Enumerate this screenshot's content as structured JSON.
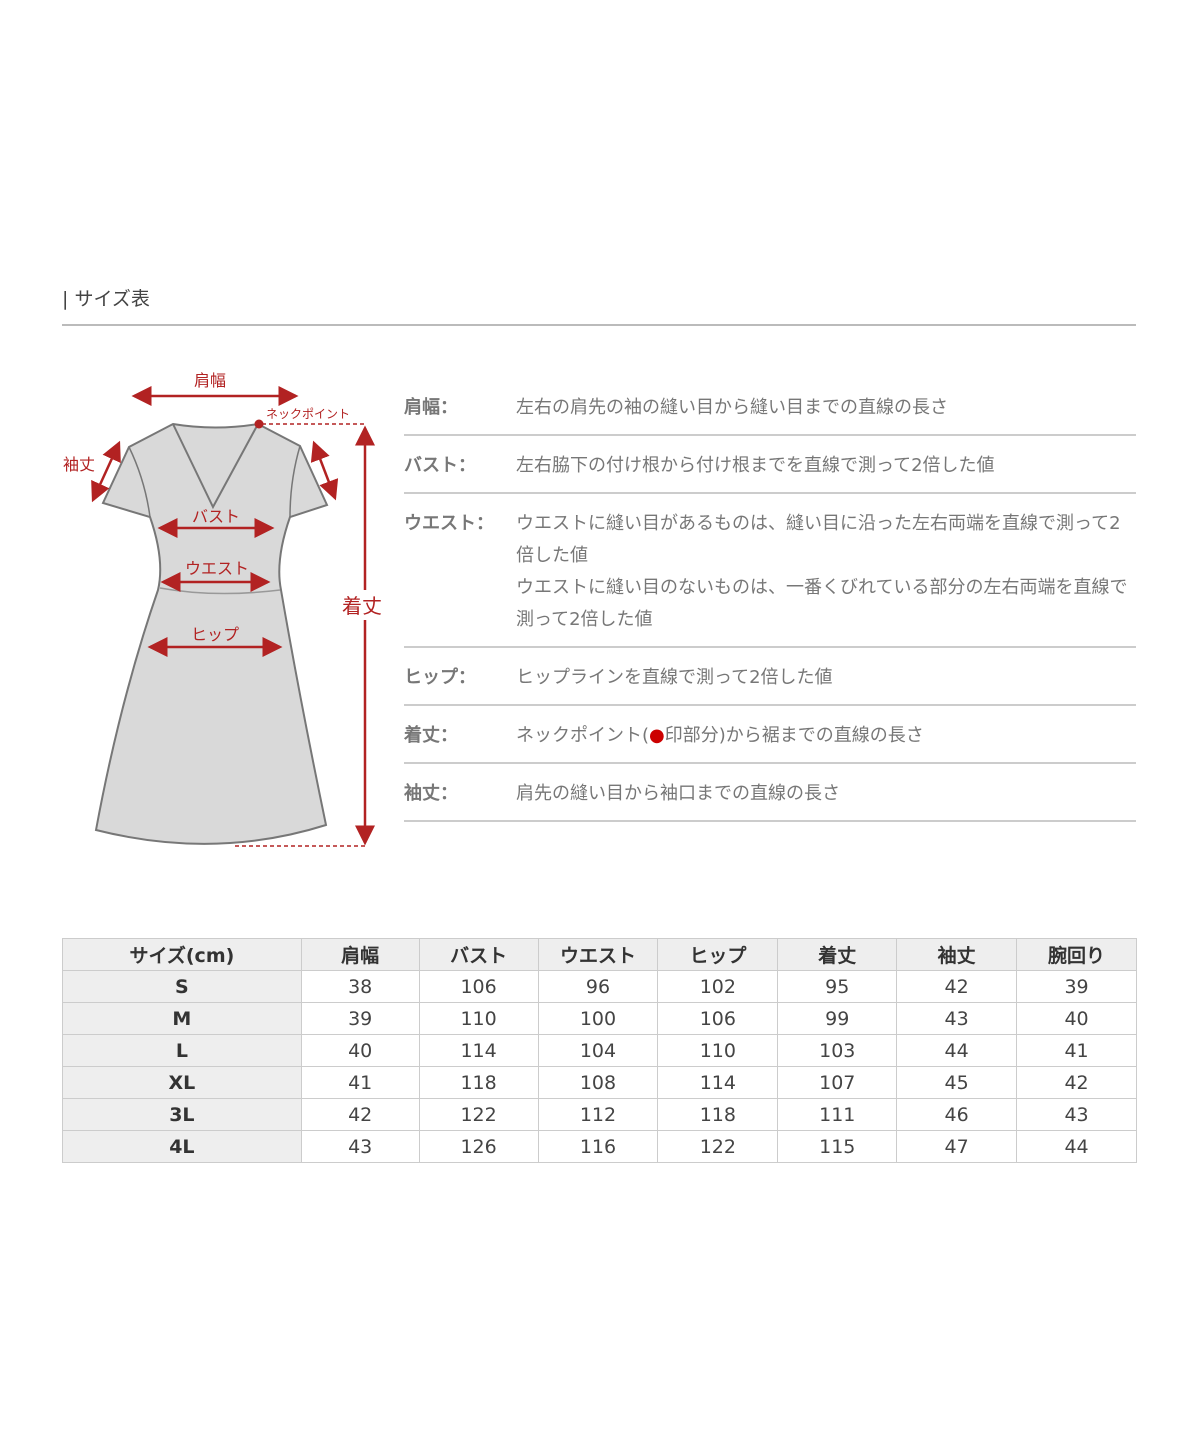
{
  "section_title": "| サイズ表",
  "diagram": {
    "labels": {
      "shoulder": "肩幅",
      "neck_point": "ネックポイント",
      "sleeve": "袖丈",
      "bust": "バスト",
      "waist": "ウエスト",
      "hip": "ヒップ",
      "length": "着丈"
    },
    "colors": {
      "arrow": "#b22222",
      "dress": "#d9d9d9",
      "outline": "#777777"
    }
  },
  "descriptions": [
    {
      "label": "肩幅：",
      "text": "左右の肩先の袖の縫い目から縫い目までの直線の長さ"
    },
    {
      "label": "バスト：",
      "text": "左右脇下の付け根から付け根までを直線で測って2倍した値"
    },
    {
      "label": "ウエスト：",
      "text": "ウエストに縫い目があるものは、縫い目に沿った左右両端を直線で測って2倍した値",
      "text2": "ウエストに縫い目のないものは、一番くびれている部分の左右両端を直線で測って2倍した値"
    },
    {
      "label": "ヒップ：",
      "text": "ヒップラインを直線で測って2倍した値"
    },
    {
      "label": "着丈：",
      "text_before": "ネックポイント(",
      "dot": "●",
      "text_after": "印部分)から裾までの直線の長さ"
    },
    {
      "label": "袖丈：",
      "text": "肩先の縫い目から袖口までの直線の長さ"
    }
  ],
  "table": {
    "headers": [
      "サイズ(cm)",
      "肩幅",
      "バスト",
      "ウエスト",
      "ヒップ",
      "着丈",
      "袖丈",
      "腕回り"
    ],
    "rows": [
      [
        "S",
        "38",
        "106",
        "96",
        "102",
        "95",
        "42",
        "39"
      ],
      [
        "M",
        "39",
        "110",
        "100",
        "106",
        "99",
        "43",
        "40"
      ],
      [
        "L",
        "40",
        "114",
        "104",
        "110",
        "103",
        "44",
        "41"
      ],
      [
        "XL",
        "41",
        "118",
        "108",
        "114",
        "107",
        "45",
        "42"
      ],
      [
        "3L",
        "42",
        "122",
        "112",
        "118",
        "111",
        "46",
        "43"
      ],
      [
        "4L",
        "43",
        "126",
        "116",
        "122",
        "115",
        "47",
        "44"
      ]
    ]
  }
}
